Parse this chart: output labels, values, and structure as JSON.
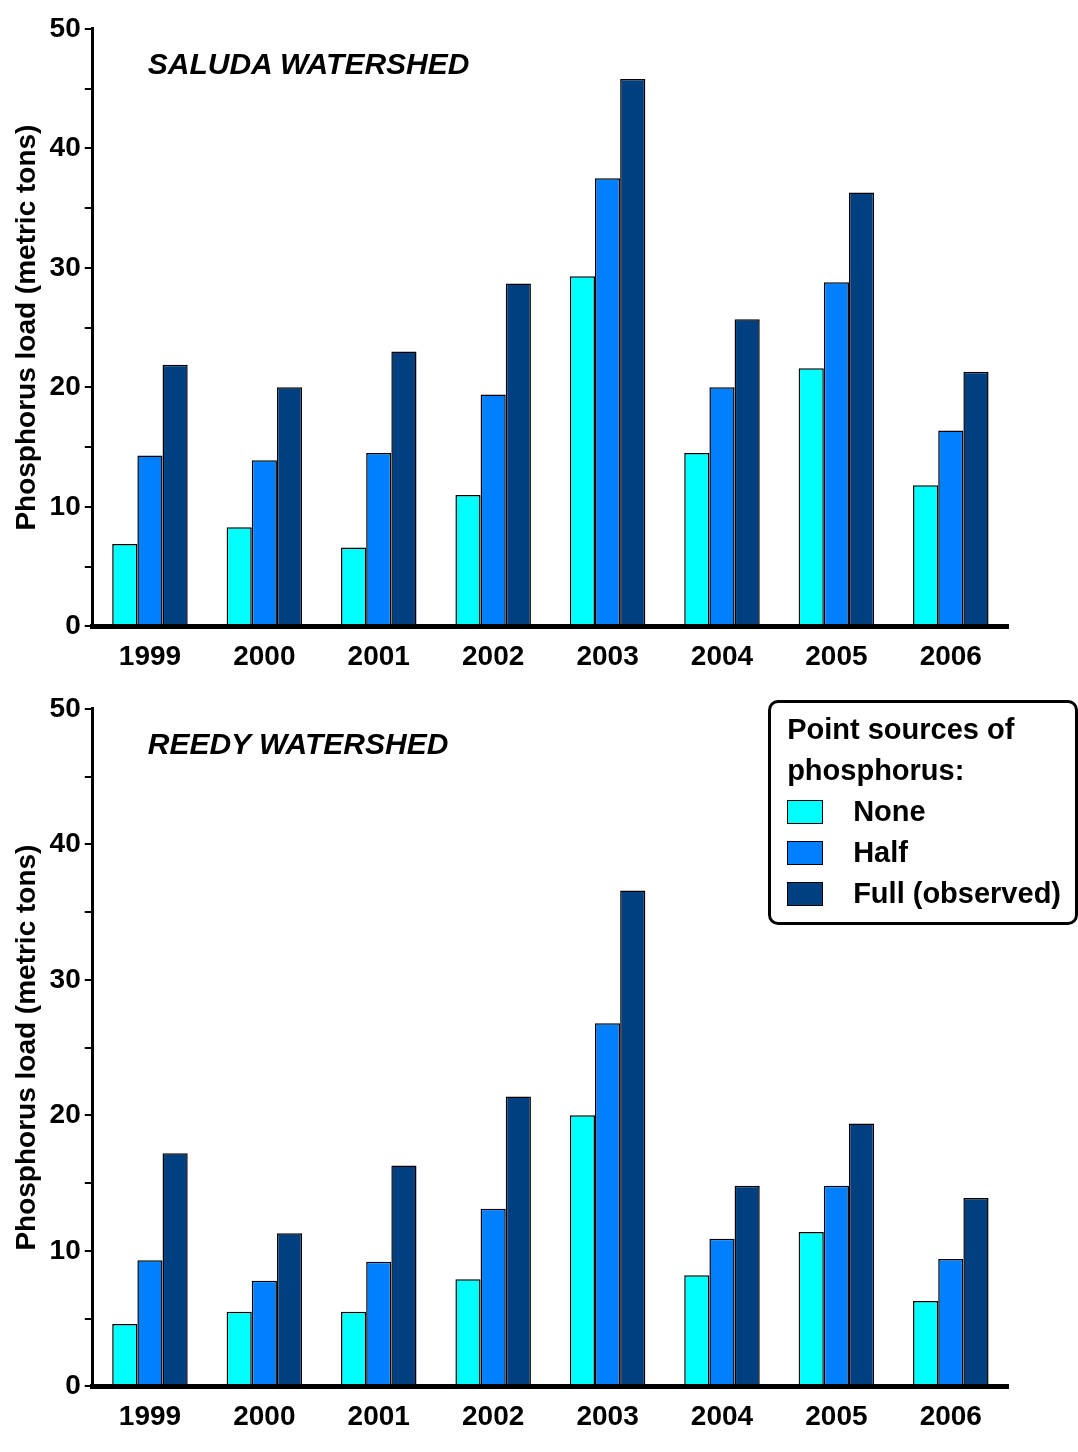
{
  "chart_data": [
    {
      "type": "bar",
      "title": "SALUDA WATERSHED",
      "ylabel": "Phosphorus load (metric tons)",
      "categories": [
        "1999",
        "2000",
        "2001",
        "2002",
        "2003",
        "2004",
        "2005",
        "2006"
      ],
      "series": [
        {
          "color": "#00ffff",
          "values": [
            6.9,
            8.3,
            6.6,
            11.0,
            29.3,
            14.5,
            21.6,
            11.8
          ]
        },
        {
          "color": "#0080ff",
          "values": [
            14.3,
            13.9,
            14.5,
            19.4,
            37.5,
            20.0,
            28.8,
            16.4
          ]
        },
        {
          "color": "#003f80",
          "values": [
            21.9,
            20.0,
            23.0,
            28.7,
            45.8,
            25.7,
            36.3,
            21.3
          ]
        }
      ],
      "ylim": [
        0,
        50
      ],
      "yticks": [
        0,
        {
          "value": 5,
          "label": null
        },
        10,
        {
          "value": 15,
          "label": null
        },
        20,
        {
          "value": 25,
          "label": null
        },
        30,
        {
          "value": 35,
          "label": null
        },
        40,
        {
          "value": 45,
          "label": null
        },
        50
      ],
      "grid": false,
      "legend": false
    },
    {
      "type": "bar",
      "title": "REEDY WATERSHED",
      "ylabel": "Phosphorus load (metric tons)",
      "legend_title": "Point sources of phosphorus:",
      "categories": [
        "1999",
        "2000",
        "2001",
        "2002",
        "2003",
        "2004",
        "2005",
        "2006"
      ],
      "series": [
        {
          "name": "None",
          "color": "#00ffff",
          "values": [
            4.6,
            5.5,
            5.5,
            7.9,
            20.0,
            8.2,
            11.4,
            6.3
          ]
        },
        {
          "name": "Half",
          "color": "#0080ff",
          "values": [
            9.3,
            7.8,
            9.2,
            13.1,
            26.8,
            10.9,
            14.8,
            9.4
          ]
        },
        {
          "name": "Full (observed)",
          "color": "#003f80",
          "values": [
            17.2,
            11.3,
            16.3,
            21.4,
            36.6,
            14.8,
            19.4,
            13.9
          ]
        }
      ],
      "ylim": [
        0,
        50
      ],
      "yticks": [
        0,
        {
          "value": 5,
          "label": null
        },
        10,
        {
          "value": 15,
          "label": null
        },
        20,
        {
          "value": 25,
          "label": null
        },
        30,
        {
          "value": 35,
          "label": null
        },
        40,
        {
          "value": 45,
          "label": null
        },
        50
      ],
      "grid": false,
      "legend": "top right"
    }
  ]
}
